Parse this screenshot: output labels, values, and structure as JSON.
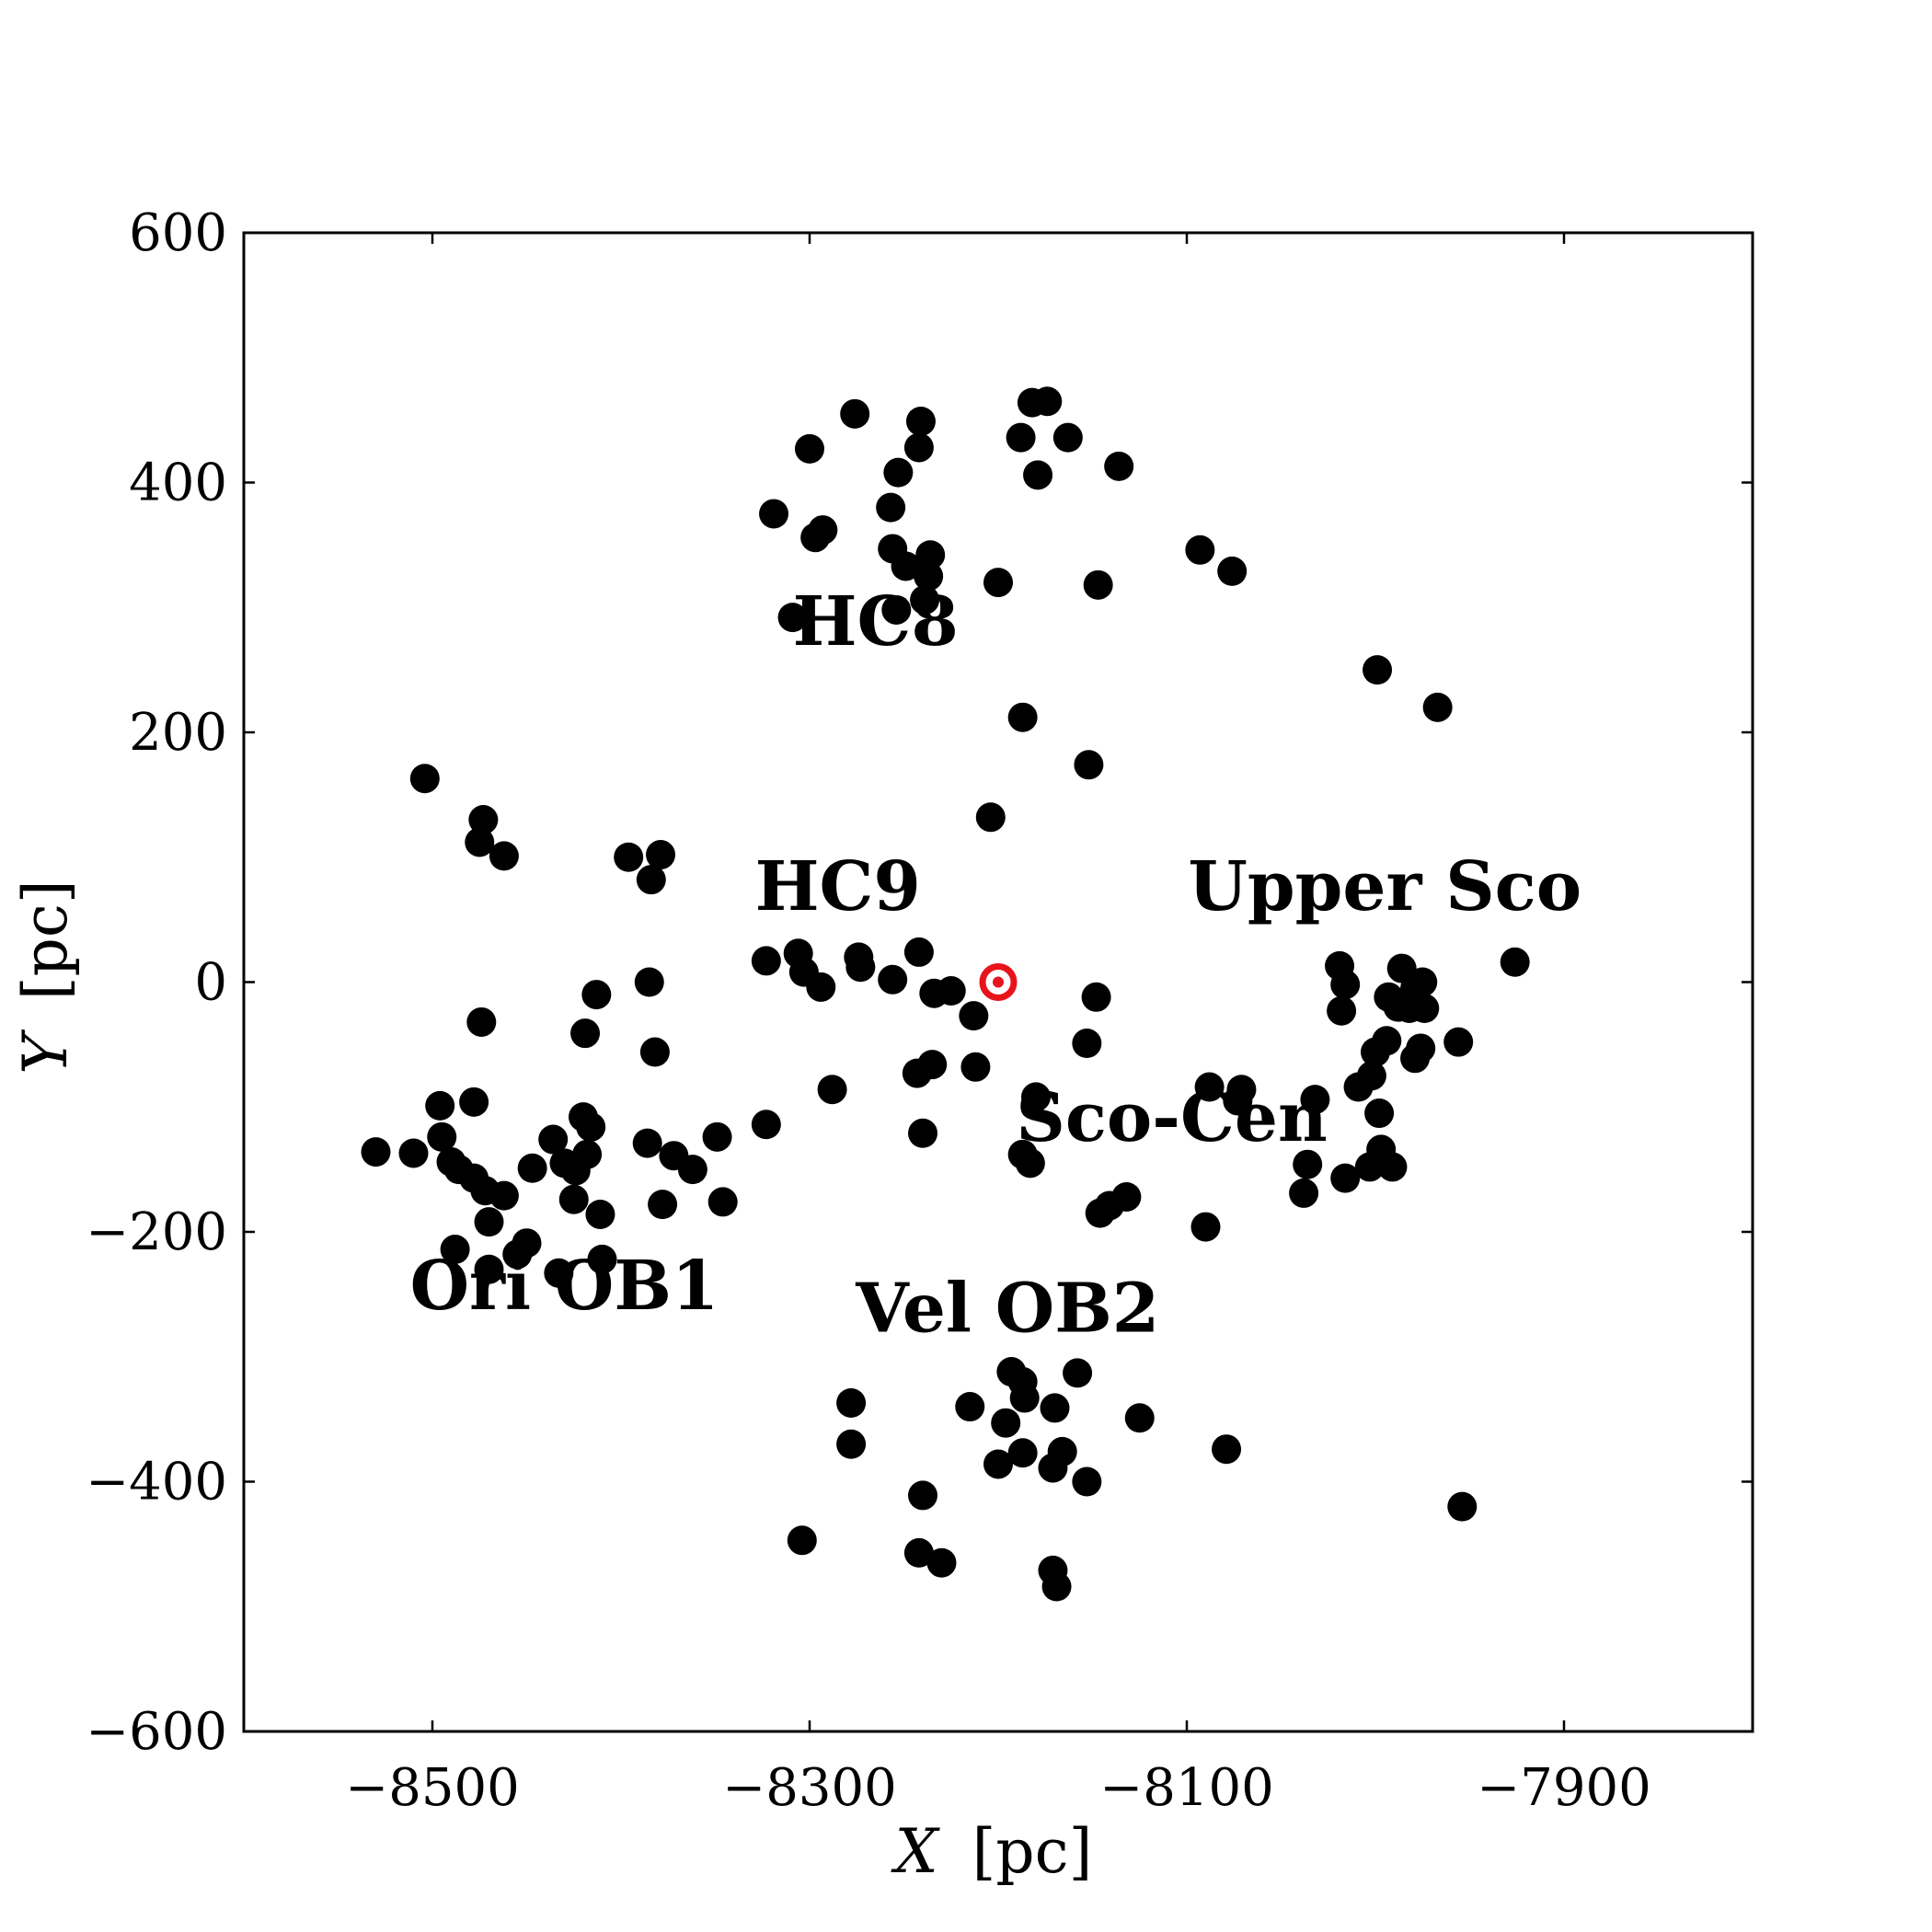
{
  "chart_data": {
    "type": "scatter",
    "xlabel_var": "X",
    "xlabel_unit": "[pc]",
    "ylabel_var": "Y",
    "ylabel_unit": "[pc]",
    "xlim": [
      -8600,
      -7800
    ],
    "ylim": [
      -600,
      600
    ],
    "xticks": [
      -8500,
      -8300,
      -8100,
      -7900
    ],
    "yticks": [
      600,
      400,
      200,
      0,
      -200,
      -400,
      -600
    ],
    "xtick_labels": [
      "−8500",
      "−8300",
      "−8100",
      "−7900"
    ],
    "ytick_labels": [
      "600",
      "400",
      "200",
      "0",
      "−200",
      "−400",
      "−600"
    ],
    "grid": false,
    "marker_color": "#000000",
    "sun": {
      "x": -8200,
      "y": 0,
      "color": "#e8141c",
      "symbol": "sun-symbol"
    },
    "annotations": [
      {
        "text": "HC8",
        "x": -8265,
        "y": 270
      },
      {
        "text": "HC9",
        "x": -8285,
        "y": 58
      },
      {
        "text": "Upper Sco",
        "x": -7995,
        "y": 58
      },
      {
        "text": "Sco-Cen",
        "x": -8108,
        "y": -127
      },
      {
        "text": "Ori OB1",
        "x": -8430,
        "y": -262
      },
      {
        "text": "Vel OB2",
        "x": -8195,
        "y": -280
      }
    ],
    "points": [
      [
        -8276,
        455
      ],
      [
        -8300,
        427
      ],
      [
        -8241,
        449
      ],
      [
        -8242,
        428
      ],
      [
        -8253,
        408
      ],
      [
        -8319,
        375
      ],
      [
        -8293,
        362
      ],
      [
        -8297,
        356
      ],
      [
        -8257,
        380
      ],
      [
        -8256,
        347
      ],
      [
        -8249,
        333
      ],
      [
        -8236,
        342
      ],
      [
        -8237,
        325
      ],
      [
        -8239,
        306
      ],
      [
        -8254,
        298
      ],
      [
        -8309,
        292
      ],
      [
        -8200,
        320
      ],
      [
        -8147,
        318
      ],
      [
        -8182,
        464
      ],
      [
        -8174,
        465
      ],
      [
        -8188,
        436
      ],
      [
        -8163,
        436
      ],
      [
        -8136,
        413
      ],
      [
        -8179,
        406
      ],
      [
        -8093,
        346
      ],
      [
        -8076,
        329
      ],
      [
        -7999,
        250
      ],
      [
        -7967,
        220
      ],
      [
        -8187,
        212
      ],
      [
        -8152,
        174
      ],
      [
        -8204,
        132
      ],
      [
        -8504,
        163
      ],
      [
        -8473,
        130
      ],
      [
        -8475,
        112
      ],
      [
        -8462,
        101
      ],
      [
        -8396,
        100
      ],
      [
        -8379,
        102
      ],
      [
        -8384,
        82
      ],
      [
        -8323,
        17
      ],
      [
        -8306,
        23
      ],
      [
        -8303,
        8
      ],
      [
        -8294,
        -4
      ],
      [
        -8274,
        20
      ],
      [
        -8273,
        12
      ],
      [
        -8256,
        2
      ],
      [
        -8242,
        24
      ],
      [
        -8234,
        -9
      ],
      [
        -8225,
        -7
      ],
      [
        -8213,
        -27
      ],
      [
        -8212,
        -68
      ],
      [
        -8235,
        -66
      ],
      [
        -8243,
        -73
      ],
      [
        -8288,
        -86
      ],
      [
        -8413,
        -10
      ],
      [
        -8385,
        0
      ],
      [
        -8474,
        -32
      ],
      [
        -8419,
        -41
      ],
      [
        -8382,
        -56
      ],
      [
        -8148,
        -12
      ],
      [
        -8153,
        -49
      ],
      [
        -8180,
        -92
      ],
      [
        -8187,
        -138
      ],
      [
        -8183,
        -145
      ],
      [
        -8240,
        -121
      ],
      [
        -8323,
        -114
      ],
      [
        -8349,
        -124
      ],
      [
        -8346,
        -176
      ],
      [
        -8362,
        -150
      ],
      [
        -8372,
        -139
      ],
      [
        -8386,
        -129
      ],
      [
        -8378,
        -178
      ],
      [
        -8411,
        -186
      ],
      [
        -8410,
        -222
      ],
      [
        -8433,
        -233
      ],
      [
        -8450,
        -209
      ],
      [
        -8455,
        -218
      ],
      [
        -8470,
        -230
      ],
      [
        -8470,
        -192
      ],
      [
        -8488,
        -214
      ],
      [
        -8472,
        -167
      ],
      [
        -8490,
        -144
      ],
      [
        -8478,
        -157
      ],
      [
        -8486,
        -150
      ],
      [
        -8495,
        -124
      ],
      [
        -8496,
        -99
      ],
      [
        -8478,
        -96
      ],
      [
        -8462,
        -171
      ],
      [
        -8447,
        -149
      ],
      [
        -8436,
        -126
      ],
      [
        -8430,
        -145
      ],
      [
        -8425,
        -174
      ],
      [
        -8424,
        -151
      ],
      [
        -8418,
        -138
      ],
      [
        -8420,
        -108
      ],
      [
        -8416,
        -116
      ],
      [
        -8510,
        -137
      ],
      [
        -8530,
        -136
      ],
      [
        -8132,
        -172
      ],
      [
        -8141,
        -179
      ],
      [
        -8146,
        -185
      ],
      [
        -8090,
        -196
      ],
      [
        -8038,
        -169
      ],
      [
        -8036,
        -146
      ],
      [
        -8016,
        -157
      ],
      [
        -8003,
        -148
      ],
      [
        -7991,
        -148
      ],
      [
        -7997,
        -134
      ],
      [
        -7998,
        -105
      ],
      [
        -8088,
        -84
      ],
      [
        -8071,
        -86
      ],
      [
        -8073,
        -95
      ],
      [
        -8032,
        -94
      ],
      [
        -8009,
        -84
      ],
      [
        -8002,
        -75
      ],
      [
        -8000,
        -56
      ],
      [
        -7994,
        -47
      ],
      [
        -7979,
        -61
      ],
      [
        -7976,
        -53
      ],
      [
        -7956,
        -48
      ],
      [
        -7988,
        -20
      ],
      [
        -7982,
        -21
      ],
      [
        -7974,
        -21
      ],
      [
        -7993,
        -12
      ],
      [
        -7979,
        -5
      ],
      [
        -7986,
        11
      ],
      [
        -7975,
        0
      ],
      [
        -8019,
        13
      ],
      [
        -8018,
        -23
      ],
      [
        -8016,
        -2
      ],
      [
        -7926,
        16
      ],
      [
        -8278,
        -337
      ],
      [
        -8278,
        -370
      ],
      [
        -8215,
        -340
      ],
      [
        -8193,
        -312
      ],
      [
        -8187,
        -320
      ],
      [
        -8186,
        -333
      ],
      [
        -8196,
        -353
      ],
      [
        -8187,
        -377
      ],
      [
        -8200,
        -386
      ],
      [
        -8170,
        -341
      ],
      [
        -8166,
        -376
      ],
      [
        -8171,
        -389
      ],
      [
        -8153,
        -400
      ],
      [
        -8158,
        -313
      ],
      [
        -8125,
        -349
      ],
      [
        -8079,
        -374
      ],
      [
        -8240,
        -411
      ],
      [
        -8242,
        -457
      ],
      [
        -8230,
        -465
      ],
      [
        -8304,
        -447
      ],
      [
        -8171,
        -471
      ],
      [
        -8169,
        -484
      ],
      [
        -7954,
        -420
      ]
    ]
  }
}
